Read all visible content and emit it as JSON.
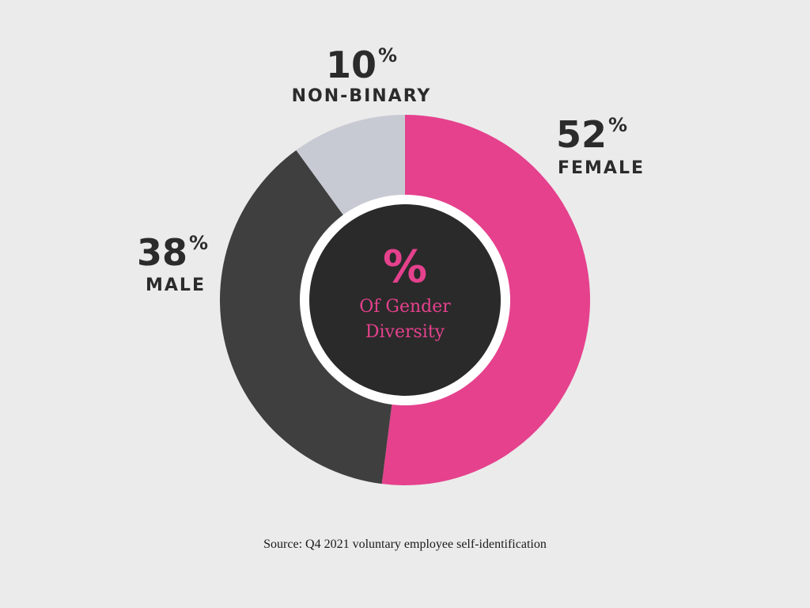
{
  "chart_data": {
    "type": "pie",
    "style": "donut",
    "categories": [
      "FEMALE",
      "MALE",
      "NON-BINARY"
    ],
    "values": [
      52,
      38,
      10
    ],
    "value_labels": [
      "52",
      "38",
      "10"
    ],
    "unit_symbol": "%",
    "colors": [
      "#e5418d",
      "#3f3f3f",
      "#c8cad3"
    ],
    "start_angle_deg": 0,
    "direction": "clockwise"
  },
  "center": {
    "symbol": "%",
    "line1": "Of Gender",
    "line2": "Diversity",
    "text_color": "#e5418d",
    "fill_color": "#2a2a2a",
    "ring_color": "#ffffff"
  },
  "source": "Source: Q4 2021 voluntary employee self-identification"
}
